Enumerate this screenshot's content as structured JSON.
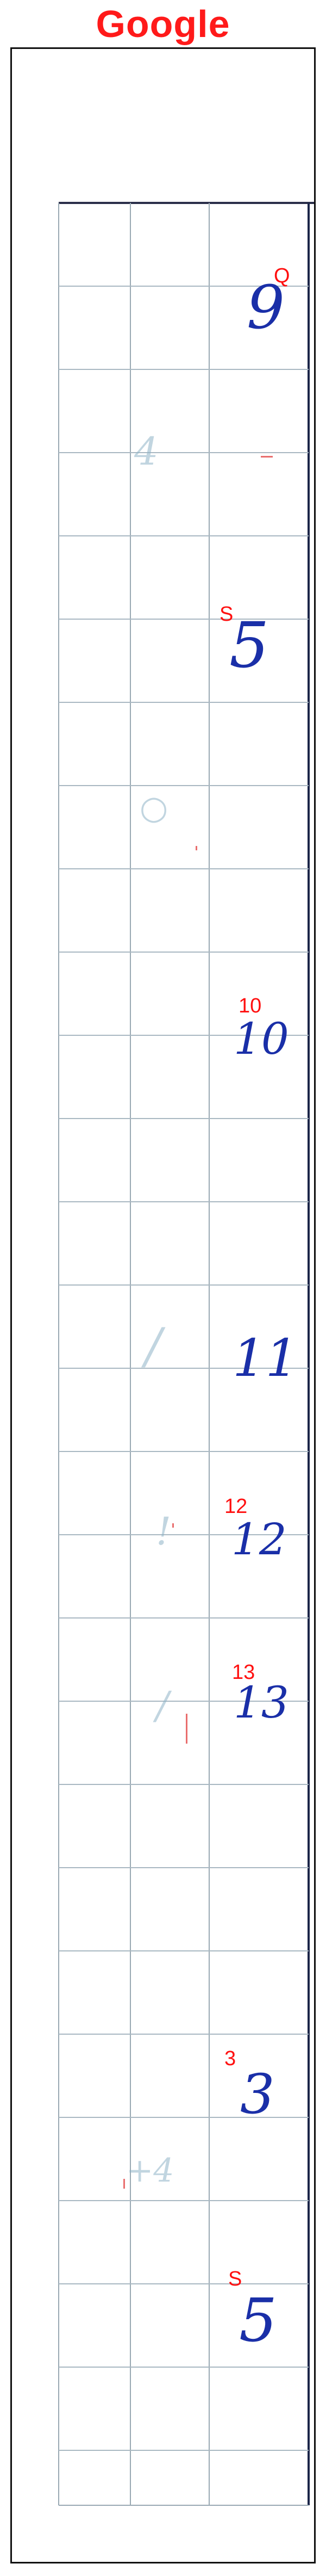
{
  "header": {
    "title": "Google",
    "title_color": "#ff1a1a"
  },
  "annotations": [
    {
      "label": "Q",
      "handwritten": "9"
    },
    {
      "label": "S",
      "handwritten": "5"
    },
    {
      "label": "10",
      "handwritten": "10"
    },
    {
      "label": "",
      "handwritten": "11"
    },
    {
      "label": "12",
      "handwritten": "12"
    },
    {
      "label": "13",
      "handwritten": "13"
    },
    {
      "label": "3",
      "handwritten": "3"
    },
    {
      "label": "S",
      "handwritten": "5"
    }
  ],
  "colors": {
    "annotation_red": "#ff1010",
    "handwriting_blue": "#1a2fa8",
    "grid_line": "#a9b8c2",
    "frame_border": "#111111"
  }
}
